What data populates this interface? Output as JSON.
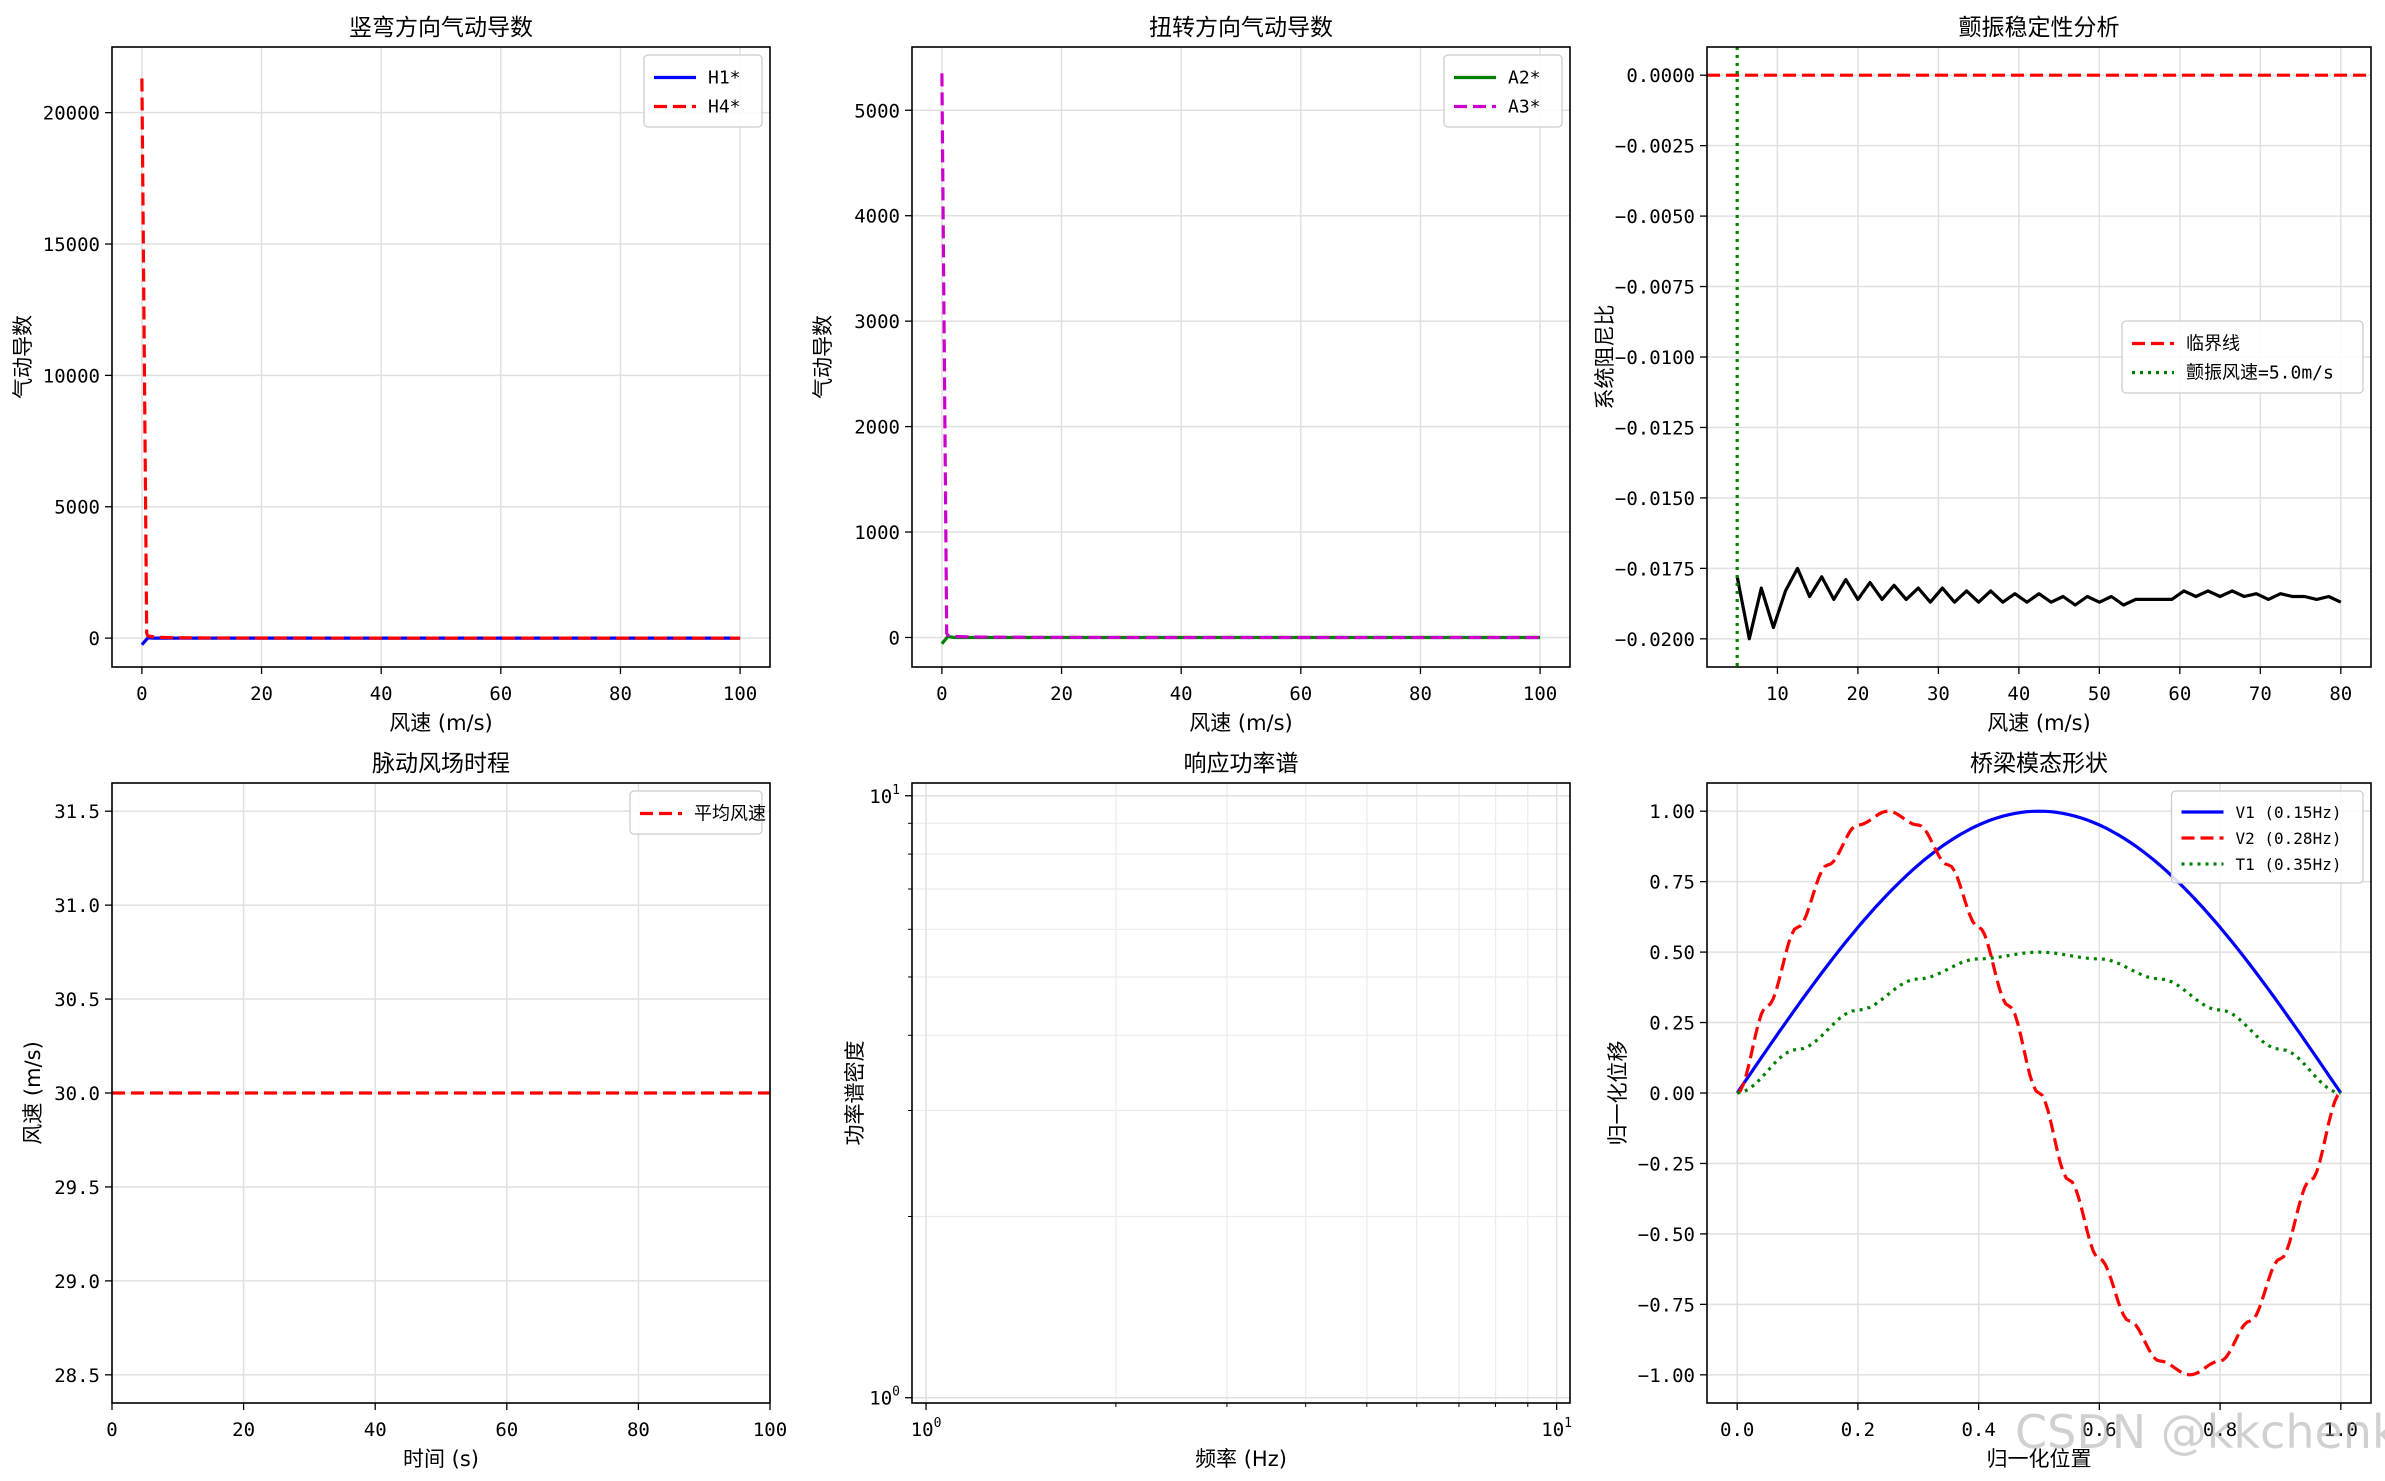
{
  "watermark": "CSDN @kkchenkx",
  "chart_data": [
    {
      "type": "line",
      "title": "竖弯方向气动导数",
      "xlabel": "风速 (m/s)",
      "ylabel": "气动导数",
      "xlim": [
        -5,
        105
      ],
      "ylim": [
        -1100,
        22500
      ],
      "xticks": [
        0,
        20,
        40,
        60,
        80,
        100
      ],
      "yticks": [
        0,
        5000,
        10000,
        15000,
        20000
      ],
      "grid": true,
      "legend": "top-right",
      "series": [
        {
          "name": "H1*",
          "color": "#0000ff",
          "style": "solid",
          "x": [
            0,
            1,
            2,
            3,
            5,
            10,
            20,
            40,
            60,
            80,
            100
          ],
          "y": [
            -250,
            10,
            0,
            0,
            0,
            0,
            0,
            0,
            0,
            0,
            0
          ]
        },
        {
          "name": "H4*",
          "color": "#ff0000",
          "style": "dashed",
          "x": [
            0,
            0.8,
            1,
            2,
            3,
            5,
            10,
            20,
            40,
            60,
            80,
            100
          ],
          "y": [
            21300,
            180,
            80,
            50,
            30,
            15,
            8,
            3,
            1,
            1,
            0,
            0
          ]
        }
      ]
    },
    {
      "type": "line",
      "title": "扭转方向气动导数",
      "xlabel": "风速 (m/s)",
      "ylabel": "气动导数",
      "xlim": [
        -5,
        105
      ],
      "ylim": [
        -280,
        5600
      ],
      "xticks": [
        0,
        20,
        40,
        60,
        80,
        100
      ],
      "yticks": [
        0,
        1000,
        2000,
        3000,
        4000,
        5000
      ],
      "grid": true,
      "legend": "top-right",
      "series": [
        {
          "name": "A2*",
          "color": "#008000",
          "style": "solid",
          "x": [
            0,
            1,
            2,
            3,
            5,
            10,
            20,
            40,
            60,
            80,
            100
          ],
          "y": [
            -60,
            10,
            0,
            0,
            0,
            0,
            0,
            0,
            0,
            0,
            0
          ]
        },
        {
          "name": "A3*",
          "color": "#cc00cc",
          "style": "dashed",
          "x": [
            0,
            0.8,
            1,
            2,
            3,
            5,
            10,
            20,
            40,
            60,
            80,
            100
          ],
          "y": [
            5350,
            40,
            20,
            10,
            8,
            5,
            3,
            1,
            0,
            0,
            0,
            0
          ]
        }
      ]
    },
    {
      "type": "line",
      "title": "颤振稳定性分析",
      "xlabel": "风速 (m/s)",
      "ylabel": "系统阻尼比",
      "xlim": [
        1.25,
        83.75
      ],
      "ylim": [
        -0.021,
        0.001
      ],
      "xticks": [
        10,
        20,
        30,
        40,
        50,
        60,
        70,
        80
      ],
      "yticks": [
        0.0,
        -0.0025,
        -0.005,
        -0.0075,
        -0.01,
        -0.0125,
        -0.015,
        -0.0175,
        -0.02
      ],
      "ytick_labels": [
        "0.0000",
        "−0.0025",
        "−0.0050",
        "−0.0075",
        "−0.0100",
        "−0.0125",
        "−0.0150",
        "−0.0175",
        "−0.0200"
      ],
      "grid": true,
      "legend": "center-right",
      "series": [
        {
          "name": "",
          "color": "#000000",
          "style": "solid",
          "x": [
            5,
            6.5,
            8,
            9.5,
            11,
            12.5,
            14,
            15.5,
            17,
            18.5,
            20,
            21.5,
            23,
            24.5,
            26,
            27.5,
            29,
            30.5,
            32,
            33.5,
            35,
            36.5,
            38,
            39.5,
            41,
            42.5,
            44,
            45.5,
            47,
            48.5,
            50,
            51.5,
            53,
            54.5,
            56,
            57.5,
            59,
            60.5,
            62,
            63.5,
            65,
            66.5,
            68,
            69.5,
            71,
            72.5,
            74,
            75.5,
            77,
            78.5,
            80
          ],
          "y": [
            -0.0178,
            -0.02,
            -0.0182,
            -0.0196,
            -0.0183,
            -0.0175,
            -0.0185,
            -0.0178,
            -0.0186,
            -0.0179,
            -0.0186,
            -0.018,
            -0.0186,
            -0.0181,
            -0.0186,
            -0.0182,
            -0.0187,
            -0.0182,
            -0.0187,
            -0.0183,
            -0.0187,
            -0.0183,
            -0.0187,
            -0.0184,
            -0.0187,
            -0.0184,
            -0.0187,
            -0.0185,
            -0.0188,
            -0.0185,
            -0.0187,
            -0.0185,
            -0.0188,
            -0.0186,
            -0.0186,
            -0.0186,
            -0.0186,
            -0.0183,
            -0.0185,
            -0.0183,
            -0.0185,
            -0.0183,
            -0.0185,
            -0.0184,
            -0.0186,
            -0.0184,
            -0.0185,
            -0.0185,
            -0.0186,
            -0.0185,
            -0.0187
          ]
        },
        {
          "name": "临界线",
          "color": "#ff0000",
          "style": "dashed",
          "hline": 0
        },
        {
          "name": "颤振风速=5.0m/s",
          "color": "#008000",
          "style": "dotted",
          "vline": 5
        }
      ]
    },
    {
      "type": "line",
      "title": "脉动风场时程",
      "xlabel": "时间 (s)",
      "ylabel": "风速 (m/s)",
      "xlim": [
        0,
        100
      ],
      "ylim": [
        28.35,
        31.65
      ],
      "xticks": [
        0,
        20,
        40,
        60,
        80,
        100
      ],
      "yticks": [
        28.5,
        29.0,
        29.5,
        30.0,
        30.5,
        31.0,
        31.5
      ],
      "ytick_labels": [
        "28.5",
        "29.0",
        "29.5",
        "30.0",
        "30.5",
        "31.0",
        "31.5"
      ],
      "grid": true,
      "legend": "top-right",
      "series": [
        {
          "name": "平均风速",
          "color": "#ff0000",
          "style": "dashed",
          "hline": 30.0
        }
      ]
    },
    {
      "type": "line",
      "title": "响应功率谱",
      "xlabel": "频率 (Hz)",
      "ylabel": "功率谱密度",
      "xscale": "log",
      "yscale": "log",
      "xlim": [
        0.95,
        10.5
      ],
      "ylim": [
        0.98,
        10.5
      ],
      "xticks": [
        1,
        10
      ],
      "yticks": [
        1,
        10
      ],
      "grid": true,
      "series": []
    },
    {
      "type": "line",
      "title": "桥梁模态形状",
      "xlabel": "归一化位置",
      "ylabel": "归一化位移",
      "xlim": [
        -0.05,
        1.05
      ],
      "ylim": [
        -1.1,
        1.1
      ],
      "xticks": [
        0.0,
        0.2,
        0.4,
        0.6,
        0.8,
        1.0
      ],
      "xtick_labels": [
        "0.0",
        "0.2",
        "0.4",
        "0.6",
        "0.8",
        "1.0"
      ],
      "yticks": [
        -1.0,
        -0.75,
        -0.5,
        -0.25,
        0.0,
        0.25,
        0.5,
        0.75,
        1.0
      ],
      "ytick_labels": [
        "−1.00",
        "−0.75",
        "−0.50",
        "−0.25",
        "0.00",
        "0.25",
        "0.50",
        "0.75",
        "1.00"
      ],
      "grid": true,
      "legend": "top-right",
      "series": [
        {
          "name": "V1 (0.15Hz)",
          "color": "#0000ff",
          "style": "solid",
          "x": [
            0,
            0.1,
            0.2,
            0.3,
            0.4,
            0.5,
            0.6,
            0.7,
            0.8,
            0.9,
            1.0
          ],
          "y": [
            0,
            0.309,
            0.588,
            0.809,
            0.951,
            1.0,
            0.951,
            0.809,
            0.588,
            0.309,
            0
          ]
        },
        {
          "name": "V2 (0.28Hz)",
          "color": "#ff0000",
          "style": "dashed",
          "x": [
            0,
            0.05,
            0.1,
            0.15,
            0.2,
            0.25,
            0.3,
            0.35,
            0.4,
            0.45,
            0.5,
            0.55,
            0.6,
            0.65,
            0.7,
            0.75,
            0.8,
            0.85,
            0.9,
            0.95,
            1.0
          ],
          "y": [
            0,
            0.309,
            0.588,
            0.809,
            0.951,
            1.0,
            0.951,
            0.809,
            0.588,
            0.309,
            0,
            -0.309,
            -0.588,
            -0.809,
            -0.951,
            -1.0,
            -0.951,
            -0.809,
            -0.588,
            -0.309,
            0
          ]
        },
        {
          "name": "T1 (0.35Hz)",
          "color": "#008000",
          "style": "dotted",
          "x": [
            0,
            0.1,
            0.2,
            0.3,
            0.4,
            0.5,
            0.6,
            0.7,
            0.8,
            0.9,
            1.0
          ],
          "y": [
            0,
            0.155,
            0.294,
            0.405,
            0.476,
            0.5,
            0.476,
            0.405,
            0.294,
            0.155,
            0
          ]
        }
      ]
    }
  ]
}
